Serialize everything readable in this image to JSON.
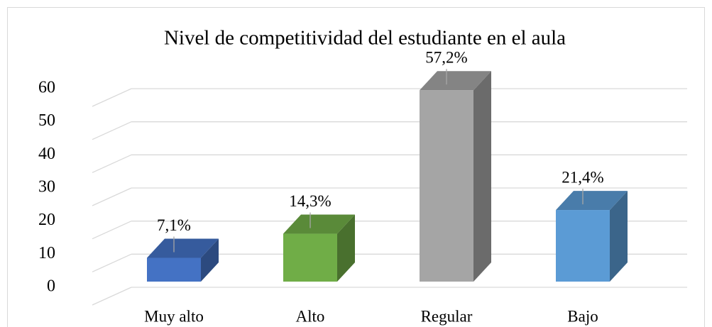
{
  "chart_data": {
    "type": "bar3d",
    "title": "Nivel de competitividad del estudiante en el aula",
    "categories": [
      "Muy alto",
      "Alto",
      "Regular",
      "Bajo"
    ],
    "values": [
      7.1,
      14.3,
      57.2,
      21.4
    ],
    "value_labels": [
      "7,1%",
      "14,3%",
      "57,2%",
      "21,4%"
    ],
    "colors": [
      "#4472c4",
      "#70ad47",
      "#a5a5a5",
      "#5b9bd5"
    ],
    "ylim": [
      0,
      60
    ],
    "yticks": [
      0,
      10,
      20,
      30,
      40,
      50,
      60
    ],
    "grid": true
  }
}
